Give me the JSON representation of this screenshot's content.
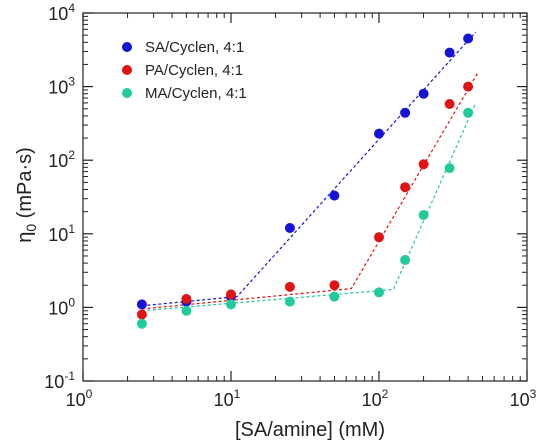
{
  "chart_data": {
    "type": "scatter",
    "xscale": "log",
    "yscale": "log",
    "xlim": [
      1,
      1000
    ],
    "ylim": [
      0.1,
      10000
    ],
    "xlabel": "[SA/amine] (mM)",
    "ylabel": "η0 (mPa·s)",
    "ylabel_base": "η",
    "ylabel_sub": "0",
    "ylabel_rest": " (mPa·s)",
    "legend_position": "top-left",
    "xticks": [
      {
        "value": 1,
        "base": "10",
        "exp": "0"
      },
      {
        "value": 10,
        "base": "10",
        "exp": "1"
      },
      {
        "value": 100,
        "base": "10",
        "exp": "2"
      },
      {
        "value": 1000,
        "base": "10",
        "exp": "3"
      }
    ],
    "yticks": [
      {
        "value": 0.1,
        "base": "10",
        "exp": "-1"
      },
      {
        "value": 1,
        "base": "10",
        "exp": "0"
      },
      {
        "value": 10,
        "base": "10",
        "exp": "1"
      },
      {
        "value": 100,
        "base": "10",
        "exp": "2"
      },
      {
        "value": 1000,
        "base": "10",
        "exp": "3"
      },
      {
        "value": 10000,
        "base": "10",
        "exp": "4"
      }
    ],
    "series": [
      {
        "name": "SA/Cyclen, 4:1",
        "color": "#1414d2",
        "x": [
          2.5,
          5,
          10,
          25,
          50,
          100,
          150,
          200,
          300,
          400
        ],
        "y": [
          1.1,
          1.2,
          1.4,
          12,
          33,
          230,
          440,
          800,
          2900,
          4500
        ],
        "fit": [
          [
            2.5,
            1.05
          ],
          [
            11,
            1.4
          ],
          [
            450,
            5500
          ]
        ]
      },
      {
        "name": "PA/Cyclen, 4:1",
        "color": "#e01414",
        "x": [
          2.5,
          5,
          10,
          25,
          50,
          100,
          150,
          200,
          300,
          400
        ],
        "y": [
          0.8,
          1.3,
          1.5,
          1.9,
          2.0,
          9,
          43,
          88,
          580,
          1000
        ],
        "fit": [
          [
            2.5,
            0.95
          ],
          [
            65,
            1.8
          ],
          [
            470,
            1600
          ]
        ]
      },
      {
        "name": "MA/Cyclen, 4:1",
        "color": "#22c99a",
        "x": [
          2.5,
          5,
          10,
          25,
          50,
          100,
          150,
          200,
          300,
          400
        ],
        "y": [
          0.6,
          0.9,
          1.1,
          1.2,
          1.4,
          1.6,
          4.4,
          18,
          78,
          440
        ],
        "fit": [
          [
            2.5,
            0.9
          ],
          [
            125,
            1.75
          ],
          [
            450,
            600
          ]
        ]
      }
    ]
  }
}
